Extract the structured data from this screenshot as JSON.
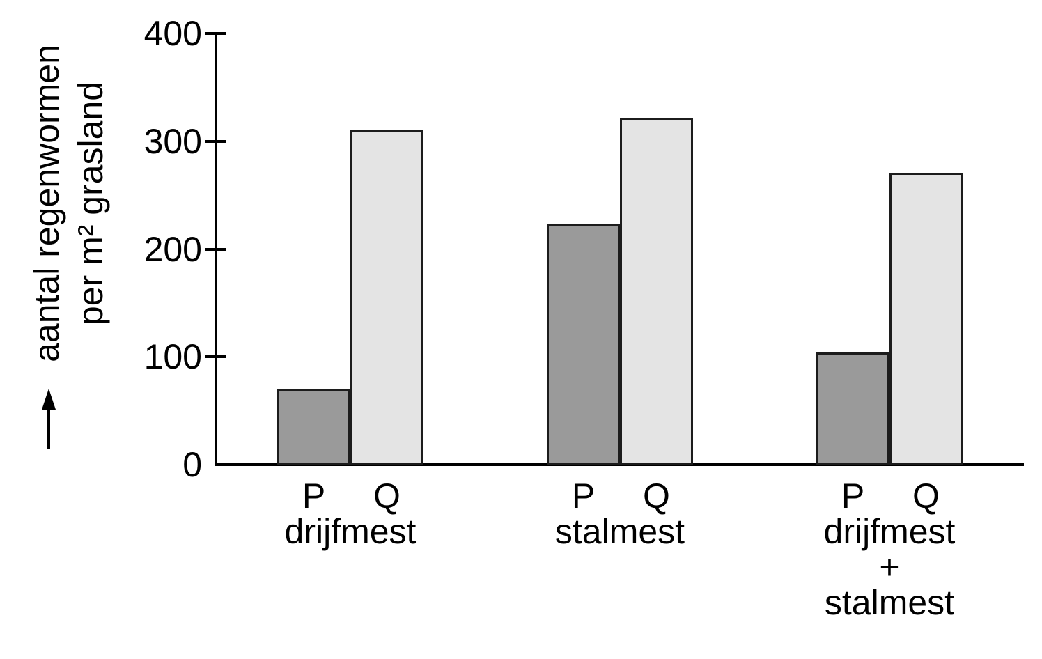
{
  "chart_data": {
    "type": "bar",
    "title": "",
    "ylabel_lines": [
      "aantal regenwormen",
      "per m² grasland"
    ],
    "ylabel_arrow": "up-arrow",
    "categories": [
      "drijfmest",
      "stalmest",
      "drijfmest + stalmest"
    ],
    "category_label_lines": [
      [
        "drijfmest"
      ],
      [
        "stalmest"
      ],
      [
        "drijfmest",
        "+",
        "stalmest"
      ]
    ],
    "bar_labels": [
      "P",
      "Q"
    ],
    "series": [
      {
        "name": "P",
        "values": [
          70,
          223,
          104
        ],
        "color": "#9a9a9a"
      },
      {
        "name": "Q",
        "values": [
          311,
          322,
          271
        ],
        "color": "#e4e4e4"
      }
    ],
    "yticks": [
      0,
      100,
      200,
      300,
      400
    ],
    "ylim": [
      0,
      400
    ],
    "grid": false,
    "legend": "none",
    "axis_color": "#000000",
    "bar_border_color": "#1c1c1c",
    "text_color": "#000000",
    "background_color": "#ffffff"
  }
}
